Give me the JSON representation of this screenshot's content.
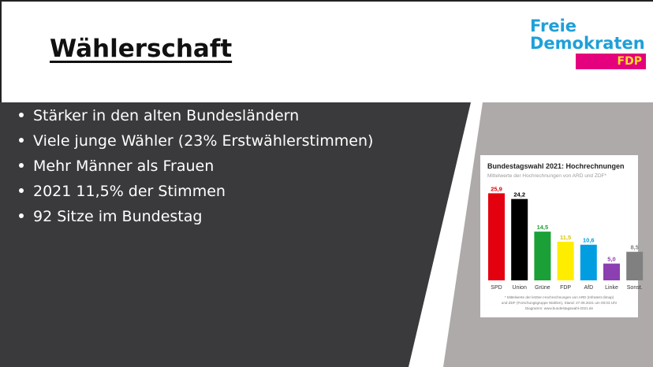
{
  "slide": {
    "title": "Wählerschaft",
    "bullets": [
      "Stärker in den alten Bundesländern",
      "Viele junge Wähler (23% Erstwählerstimmen)",
      "Mehr Männer als Frauen",
      "2021 11,5% der Stimmen",
      "92 Sitze im Bundestag"
    ],
    "colors": {
      "dark_panel": "#3a393b",
      "gray_panel": "#aeaaa9",
      "accent_blue": "#1ea0d8",
      "accent_magenta": "#e5007d",
      "accent_yellow": "#f4e21d"
    }
  },
  "logo": {
    "line1": "Freie",
    "line2": "Demokraten",
    "fdp": "FDP"
  },
  "chart_data": {
    "type": "bar",
    "title": "Bundestagswahl 2021: Hochrechnungen",
    "subtitle": "Mittelwerte der Hochrechnungen von ARD und ZDF*",
    "categories": [
      "SPD",
      "Union",
      "Grüne",
      "FDP",
      "AfD",
      "Linke",
      "Sonst."
    ],
    "values": [
      25.9,
      24.2,
      14.5,
      11.5,
      10.6,
      5.0,
      8.5
    ],
    "value_labels": [
      "25,9",
      "24,2",
      "14,5",
      "11,5",
      "10,6",
      "5,0",
      "8,5"
    ],
    "colors": [
      "#e3000f",
      "#000000",
      "#1aa037",
      "#ffed00",
      "#009ee0",
      "#8b3fb1",
      "#808080"
    ],
    "label_colors": [
      "#e3000f",
      "#000000",
      "#1aa037",
      "#d9c800",
      "#009ee0",
      "#8b3fb1",
      "#808080"
    ],
    "ylim": [
      0,
      26
    ],
    "footnotes": [
      "* Mittelwerte der letzten Hochrechnungen von ARD (Infratest dimap)",
      "und ZDF (Forschungsgruppe Wahlen), Stand: 27.09.2021 um 00:03 Uhr",
      "Diagramm: www.bundestagswahl-2021.de"
    ]
  }
}
